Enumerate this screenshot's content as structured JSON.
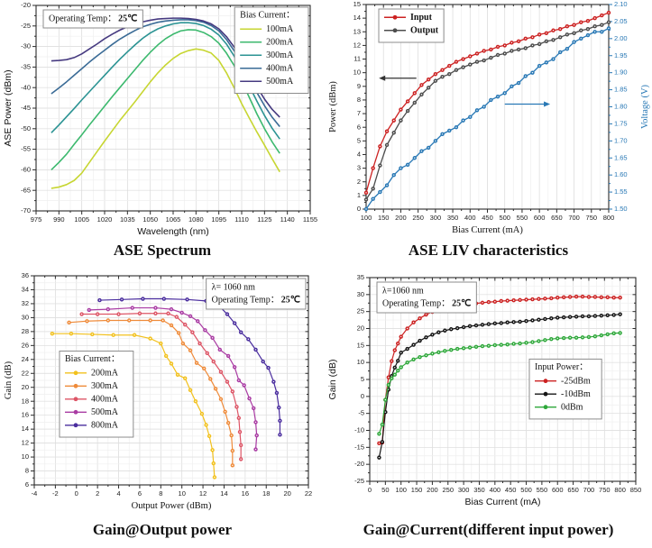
{
  "page": {
    "background": "#ffffff"
  },
  "chart_data": [
    {
      "id": "ase-spectrum",
      "type": "line",
      "title": "ASE Spectrum",
      "xlabel": "Wavelength (nm)",
      "ylabel": "ASE Power (dBm)",
      "xlim": [
        975,
        1155
      ],
      "xstep": 15,
      "ylim": [
        -70,
        -20
      ],
      "ystep": 5,
      "grid": "xy",
      "annotation": {
        "pos": "top-left",
        "lines": [
          {
            "text": "Operating Temp：",
            "bold": "25℃"
          }
        ]
      },
      "legend": {
        "title": "Bias Current：",
        "pos": "top-right"
      },
      "x": [
        985,
        990,
        995,
        1000,
        1005,
        1010,
        1015,
        1020,
        1025,
        1030,
        1035,
        1040,
        1045,
        1050,
        1055,
        1060,
        1065,
        1070,
        1075,
        1080,
        1085,
        1090,
        1095,
        1100,
        1105,
        1110,
        1115,
        1120,
        1125,
        1130,
        1135
      ],
      "series": [
        {
          "name": "100mA",
          "color": "#c7d632",
          "marker": false,
          "y": [
            -64.5,
            -64.2,
            -63.6,
            -62.6,
            -60.8,
            -58.2,
            -55.6,
            -53.0,
            -50.5,
            -48.0,
            -45.7,
            -43.4,
            -41.0,
            -38.6,
            -36.4,
            -34.5,
            -32.9,
            -31.7,
            -31.0,
            -30.6,
            -30.9,
            -31.6,
            -33.4,
            -36.4,
            -40.0,
            -43.9,
            -47.4,
            -50.8,
            -54.0,
            -57.3,
            -60.5
          ]
        },
        {
          "name": "200mA",
          "color": "#3cb96e",
          "marker": false,
          "y": [
            -60.0,
            -58.2,
            -56.2,
            -53.8,
            -51.5,
            -49.1,
            -46.8,
            -44.5,
            -42.2,
            -40.0,
            -37.8,
            -35.6,
            -33.4,
            -31.4,
            -29.6,
            -28.1,
            -27.0,
            -26.2,
            -25.9,
            -26.0,
            -26.6,
            -27.6,
            -29.2,
            -31.6,
            -34.6,
            -38.4,
            -42.4,
            -46.4,
            -50.0,
            -53.2,
            -56.0
          ]
        },
        {
          "name": "300mA",
          "color": "#2b9393",
          "marker": false,
          "y": [
            -51.0,
            -49.1,
            -47.1,
            -45.1,
            -43.0,
            -41.0,
            -39.0,
            -37.0,
            -35.0,
            -33.1,
            -31.3,
            -29.6,
            -28.0,
            -26.7,
            -25.7,
            -25.0,
            -24.5,
            -24.2,
            -24.2,
            -24.4,
            -24.9,
            -25.8,
            -27.2,
            -29.4,
            -32.3,
            -35.8,
            -39.6,
            -43.3,
            -46.8,
            -49.9,
            -52.5
          ]
        },
        {
          "name": "400mA",
          "color": "#3a6b96",
          "marker": false,
          "y": [
            -41.5,
            -40.1,
            -38.6,
            -37.0,
            -35.4,
            -33.8,
            -32.3,
            -30.9,
            -29.5,
            -28.2,
            -27.1,
            -26.1,
            -25.2,
            -24.6,
            -24.1,
            -23.8,
            -23.6,
            -23.5,
            -23.5,
            -23.7,
            -24.1,
            -24.9,
            -26.2,
            -28.3,
            -31.0,
            -34.2,
            -37.7,
            -41.2,
            -44.4,
            -47.2,
            -49.5
          ]
        },
        {
          "name": "500mA",
          "color": "#463a80",
          "marker": false,
          "y": [
            -33.5,
            -33.4,
            -33.2,
            -32.7,
            -31.8,
            -30.6,
            -29.4,
            -28.1,
            -27.0,
            -26.0,
            -25.2,
            -24.5,
            -24.0,
            -23.6,
            -23.3,
            -23.2,
            -23.1,
            -23.1,
            -23.2,
            -23.4,
            -23.8,
            -24.5,
            -25.7,
            -27.6,
            -30.1,
            -33.1,
            -36.4,
            -39.8,
            -42.8,
            -45.3,
            -47.2
          ]
        }
      ]
    },
    {
      "id": "ase-liv",
      "type": "line",
      "title": "ASE LIV characteristics",
      "xlabel": "Bias Current (mA)",
      "ylabel": "Power (dBm)",
      "y2label": "Voltage (V)",
      "y2color": "#2878b5",
      "xlim": [
        100,
        800
      ],
      "xstep": 50,
      "ylim": [
        0,
        15
      ],
      "ystep": 1,
      "y2lim": [
        1.5,
        2.1
      ],
      "y2step": 0.05,
      "grid": "x",
      "legend": {
        "pos": "top-left"
      },
      "arrows": [
        {
          "x1": 245,
          "x2": 150,
          "y": 9.6,
          "color": "#333333"
        },
        {
          "x1": 500,
          "x2": 618,
          "y": 7.7,
          "color": "#2878b5"
        }
      ],
      "x": [
        100,
        120,
        140,
        160,
        180,
        200,
        220,
        240,
        260,
        280,
        300,
        320,
        340,
        360,
        380,
        400,
        420,
        440,
        460,
        480,
        500,
        520,
        540,
        560,
        580,
        600,
        620,
        640,
        660,
        680,
        700,
        720,
        740,
        760,
        780,
        800
      ],
      "series": [
        {
          "name": "Input",
          "color": "#cc2222",
          "marker": true,
          "y": [
            1.2,
            3.0,
            4.6,
            5.7,
            6.5,
            7.3,
            7.9,
            8.5,
            9.1,
            9.5,
            9.9,
            10.2,
            10.5,
            10.8,
            11.0,
            11.2,
            11.4,
            11.6,
            11.7,
            11.9,
            12.0,
            12.2,
            12.3,
            12.5,
            12.6,
            12.8,
            12.9,
            13.1,
            13.2,
            13.4,
            13.5,
            13.7,
            13.8,
            14.0,
            14.2,
            14.4
          ]
        },
        {
          "name": "Output",
          "color": "#4d4d4d",
          "marker": true,
          "y": [
            0.7,
            1.5,
            3.2,
            4.7,
            5.6,
            6.5,
            7.2,
            7.8,
            8.4,
            8.9,
            9.4,
            9.7,
            9.9,
            10.2,
            10.4,
            10.6,
            10.8,
            10.9,
            11.1,
            11.3,
            11.4,
            11.6,
            11.7,
            11.8,
            12.0,
            12.1,
            12.3,
            12.4,
            12.6,
            12.8,
            12.9,
            13.1,
            13.2,
            13.4,
            13.5,
            13.7
          ]
        },
        {
          "name": "Voltage",
          "color": "#2878b5",
          "marker": true,
          "axis": "y2",
          "in_legend": false,
          "y": [
            1.5,
            1.53,
            1.55,
            1.57,
            1.6,
            1.62,
            1.63,
            1.65,
            1.67,
            1.68,
            1.7,
            1.72,
            1.73,
            1.74,
            1.76,
            1.77,
            1.79,
            1.8,
            1.82,
            1.83,
            1.84,
            1.86,
            1.87,
            1.89,
            1.9,
            1.92,
            1.93,
            1.94,
            1.96,
            1.97,
            1.99,
            2.0,
            2.01,
            2.02,
            2.02,
            2.03
          ]
        }
      ]
    },
    {
      "id": "gain-output",
      "type": "line",
      "title": "Gain@Output power",
      "xlabel": "Output Power (dBm)",
      "ylabel": "Gain (dB)",
      "xlim": [
        -4,
        22
      ],
      "xstep": 2,
      "ylim": [
        6,
        36
      ],
      "ystep": 2,
      "grid": "xy",
      "annotation": {
        "pos": "top-right",
        "lines": [
          {
            "text": "λ= 1060 nm"
          },
          {
            "text": "Operating Temp：",
            "bold": "25℃"
          }
        ]
      },
      "legend": {
        "title": "Bias Current：",
        "pos": "mid-left"
      },
      "series": [
        {
          "name": "200mA",
          "color": "#f2c11d",
          "marker": true,
          "sx": [
            -2.3,
            -0.5,
            1.5,
            3.5,
            5.5,
            7.0,
            8.0,
            8.5,
            9.0,
            9.6,
            10.3,
            10.8,
            11.3,
            11.9,
            12.3,
            12.6,
            12.9,
            13.0,
            13.1
          ],
          "y": [
            27.7,
            27.7,
            27.6,
            27.5,
            27.5,
            27.0,
            26.3,
            24.5,
            23.4,
            21.8,
            21.3,
            19.6,
            18.0,
            16.2,
            14.6,
            13.0,
            11.0,
            9.1,
            7.1
          ]
        },
        {
          "name": "300mA",
          "color": "#ef8b3a",
          "marker": true,
          "sx": [
            -0.7,
            1.0,
            3.0,
            5.0,
            7.0,
            8.2,
            9.0,
            9.7,
            10.1,
            10.8,
            11.4,
            12.1,
            12.7,
            13.2,
            13.7,
            14.1,
            14.4,
            14.7,
            14.8,
            14.8
          ],
          "y": [
            29.3,
            29.5,
            29.6,
            29.6,
            29.6,
            29.6,
            28.9,
            27.8,
            26.3,
            25.3,
            23.5,
            22.7,
            21.2,
            19.8,
            18.3,
            16.5,
            14.9,
            13.1,
            10.9,
            8.8
          ]
        },
        {
          "name": "400mA",
          "color": "#dd5566",
          "marker": true,
          "sx": [
            0.5,
            2.0,
            4.0,
            6.0,
            7.5,
            8.7,
            9.5,
            10.3,
            11.0,
            11.7,
            12.4,
            13.0,
            13.7,
            14.3,
            14.8,
            15.2,
            15.4,
            15.5,
            15.6,
            15.6
          ],
          "y": [
            30.5,
            30.5,
            30.5,
            30.6,
            30.6,
            30.6,
            30.1,
            29.0,
            27.9,
            26.3,
            24.9,
            23.7,
            22.2,
            20.8,
            19.4,
            17.2,
            15.6,
            13.6,
            11.7,
            9.7
          ]
        },
        {
          "name": "500mA",
          "color": "#a93ba3",
          "marker": true,
          "sx": [
            1.2,
            3.0,
            5.3,
            7.5,
            9.0,
            10.0,
            10.8,
            11.5,
            12.2,
            12.9,
            13.6,
            14.4,
            15.0,
            15.4,
            15.9,
            16.4,
            16.8,
            17.0,
            17.1,
            17.0
          ],
          "y": [
            31.1,
            31.2,
            31.4,
            31.4,
            31.2,
            30.7,
            30.2,
            29.5,
            28.2,
            27.1,
            25.4,
            24.5,
            22.9,
            21.0,
            20.3,
            18.4,
            17.0,
            15.0,
            13.1,
            11.1
          ]
        },
        {
          "name": "800mA",
          "color": "#4a2d9e",
          "marker": true,
          "sx": [
            2.2,
            4.3,
            6.3,
            8.3,
            10.5,
            12.3,
            13.5,
            14.3,
            15.0,
            15.6,
            16.3,
            17.0,
            17.7,
            18.2,
            18.7,
            19.0,
            19.2,
            19.3,
            19.3
          ],
          "y": [
            32.5,
            32.6,
            32.7,
            32.7,
            32.6,
            32.4,
            31.7,
            30.5,
            29.2,
            27.9,
            26.9,
            25.4,
            23.7,
            22.8,
            20.8,
            19.2,
            17.1,
            15.2,
            13.2
          ]
        }
      ]
    },
    {
      "id": "gain-current",
      "type": "line",
      "title": "Gain@Current(different input power)",
      "xlabel": "Bias Current (mA)",
      "ylabel": "Gain (dB)",
      "xlim": [
        0,
        850
      ],
      "xstep": 50,
      "ylim": [
        -25,
        35
      ],
      "ystep": 5,
      "grid": "xy",
      "annotation": {
        "pos": "top-left",
        "lines": [
          {
            "text": "λ=1060 nm"
          },
          {
            "text": "Operating Temp：",
            "bold": "25℃"
          }
        ]
      },
      "legend": {
        "title": "Input Power：",
        "pos": "mid-right"
      },
      "x": [
        30,
        40,
        50,
        60,
        70,
        80,
        90,
        100,
        120,
        140,
        160,
        180,
        200,
        220,
        240,
        260,
        280,
        300,
        320,
        340,
        360,
        380,
        400,
        420,
        440,
        460,
        480,
        500,
        520,
        540,
        560,
        580,
        600,
        620,
        640,
        660,
        680,
        700,
        720,
        740,
        760,
        780,
        800
      ],
      "series": [
        {
          "name": "-25dBm",
          "color": "#cc2222",
          "marker": true,
          "y": [
            -13.8,
            -13.6,
            -1.0,
            5.6,
            10.4,
            13.6,
            15.6,
            17.6,
            20.0,
            21.8,
            23.0,
            24.1,
            24.9,
            25.5,
            25.9,
            26.3,
            26.7,
            27.0,
            27.2,
            27.4,
            27.6,
            27.8,
            27.9,
            28.1,
            28.2,
            28.3,
            28.4,
            28.5,
            28.6,
            28.7,
            28.8,
            28.9,
            29.1,
            29.2,
            29.3,
            29.4,
            29.4,
            29.3,
            29.3,
            29.2,
            29.2,
            29.1,
            29.1
          ]
        },
        {
          "name": "-10dBm",
          "color": "#151515",
          "marker": true,
          "y": [
            -18.0,
            -13.4,
            -4.6,
            2.0,
            6.0,
            8.5,
            10.5,
            12.9,
            14.0,
            15.2,
            16.4,
            17.4,
            18.2,
            18.9,
            19.4,
            19.8,
            20.1,
            20.4,
            20.7,
            20.9,
            21.1,
            21.3,
            21.5,
            21.6,
            21.8,
            21.9,
            22.0,
            22.2,
            22.4,
            22.6,
            22.8,
            23.0,
            23.2,
            23.3,
            23.4,
            23.5,
            23.6,
            23.6,
            23.7,
            23.8,
            23.9,
            24.0,
            24.2
          ]
        },
        {
          "name": "0dBm",
          "color": "#2ea83a",
          "marker": true,
          "y": [
            -11.0,
            -8.3,
            -1.0,
            3.4,
            5.3,
            6.4,
            7.6,
            8.6,
            10.0,
            10.9,
            11.6,
            12.1,
            12.6,
            13.0,
            13.4,
            13.7,
            14.0,
            14.2,
            14.4,
            14.6,
            14.8,
            14.9,
            15.1,
            15.2,
            15.3,
            15.5,
            15.6,
            15.8,
            16.0,
            16.3,
            16.6,
            16.9,
            17.1,
            17.2,
            17.3,
            17.3,
            17.4,
            17.5,
            17.7,
            18.0,
            18.3,
            18.6,
            18.7
          ]
        }
      ]
    }
  ]
}
